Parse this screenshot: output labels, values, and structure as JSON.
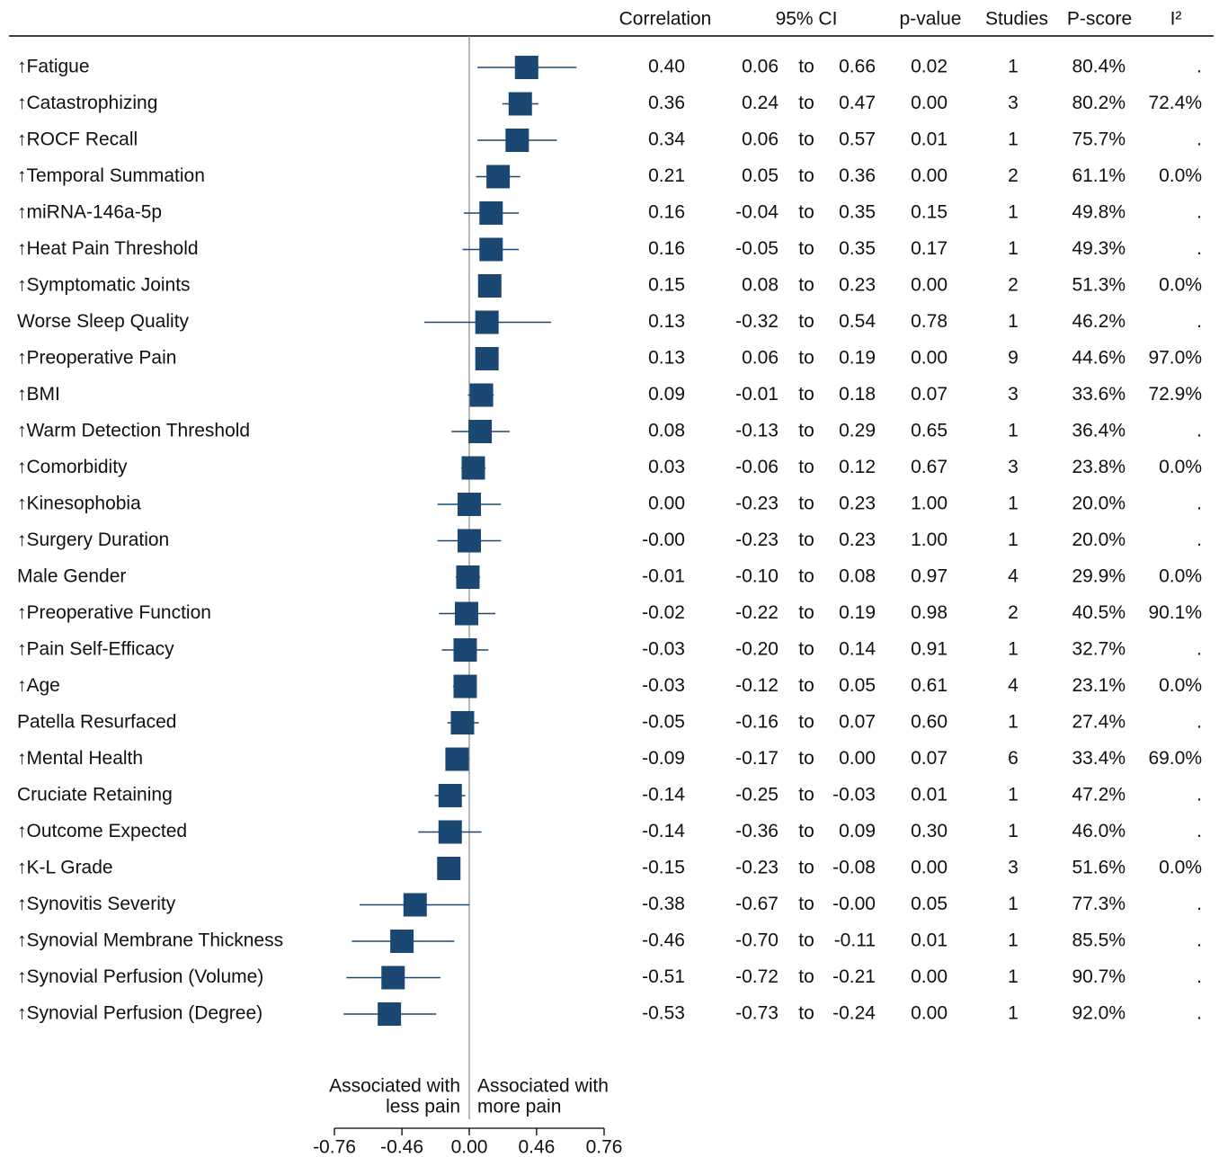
{
  "chart_data": {
    "type": "forest",
    "columns": [
      "Correlation",
      "95% CI",
      "p-value",
      "Studies",
      "P-score",
      "I²"
    ],
    "ci_separator": "to",
    "categories": [
      "↑Fatigue",
      "↑Catastrophizing",
      "↑ROCF Recall",
      "↑Temporal Summation",
      "↑miRNA-146a-5p",
      "↑Heat Pain Threshold",
      "↑Symptomatic Joints",
      "Worse Sleep Quality",
      "↑Preoperative Pain",
      "↑BMI",
      "↑Warm Detection Threshold",
      "↑Comorbidity",
      "↑Kinesophobia",
      "↑Surgery Duration",
      "Male Gender",
      "↑Preoperative Function",
      "↑Pain Self-Efficacy",
      "↑Age",
      "Patella Resurfaced",
      "↑Mental Health",
      "Cruciate Retaining",
      "↑Outcome Expected",
      "↑K-L Grade",
      "↑Synovitis Severity",
      "↑Synovial Membrane Thickness",
      "↑Synovial Perfusion (Volume)",
      "↑Synovial Perfusion (Degree)"
    ],
    "values": [
      0.4,
      0.36,
      0.34,
      0.21,
      0.16,
      0.16,
      0.15,
      0.13,
      0.13,
      0.09,
      0.08,
      0.03,
      0.0,
      0,
      -0.01,
      -0.02,
      -0.03,
      -0.03,
      -0.05,
      -0.09,
      -0.14,
      -0.14,
      -0.15,
      -0.38,
      -0.46,
      -0.51,
      -0.53
    ],
    "value_labels": [
      "0.40",
      "0.36",
      "0.34",
      "0.21",
      "0.16",
      "0.16",
      "0.15",
      "0.13",
      "0.13",
      "0.09",
      "0.08",
      "0.03",
      "0.00",
      "-0.00",
      "-0.01",
      "-0.02",
      "-0.03",
      "-0.03",
      "-0.05",
      "-0.09",
      "-0.14",
      "-0.14",
      "-0.15",
      "-0.38",
      "-0.46",
      "-0.51",
      "-0.53"
    ],
    "ci_low": [
      0.06,
      0.24,
      0.06,
      0.05,
      -0.04,
      -0.05,
      0.08,
      -0.32,
      0.06,
      -0.01,
      -0.13,
      -0.06,
      -0.23,
      -0.23,
      -0.1,
      -0.22,
      -0.2,
      -0.12,
      -0.16,
      -0.17,
      -0.25,
      -0.36,
      -0.23,
      -0.67,
      -0.7,
      -0.72,
      -0.73
    ],
    "ci_low_labels": [
      "0.06",
      "0.24",
      "0.06",
      "0.05",
      "-0.04",
      "-0.05",
      "0.08",
      "-0.32",
      "0.06",
      "-0.01",
      "-0.13",
      "-0.06",
      "-0.23",
      "-0.23",
      "-0.10",
      "-0.22",
      "-0.20",
      "-0.12",
      "-0.16",
      "-0.17",
      "-0.25",
      "-0.36",
      "-0.23",
      "-0.67",
      "-0.70",
      "-0.72",
      "-0.73"
    ],
    "ci_high": [
      0.66,
      0.47,
      0.57,
      0.36,
      0.35,
      0.35,
      0.23,
      0.54,
      0.19,
      0.18,
      0.29,
      0.12,
      0.23,
      0.23,
      0.08,
      0.19,
      0.14,
      0.05,
      0.07,
      0.0,
      -0.03,
      0.09,
      -0.08,
      0,
      -0.11,
      -0.21,
      -0.24
    ],
    "ci_high_labels": [
      "0.66",
      "0.47",
      "0.57",
      "0.36",
      "0.35",
      "0.35",
      "0.23",
      "0.54",
      "0.19",
      "0.18",
      "0.29",
      "0.12",
      "0.23",
      "0.23",
      "0.08",
      "0.19",
      "0.14",
      "0.05",
      "0.07",
      "0.00",
      "-0.03",
      "0.09",
      "-0.08",
      "-0.00",
      "-0.11",
      "-0.21",
      "-0.24"
    ],
    "p_values": [
      "0.02",
      "0.00",
      "0.01",
      "0.00",
      "0.15",
      "0.17",
      "0.00",
      "0.78",
      "0.00",
      "0.07",
      "0.65",
      "0.67",
      "1.00",
      "1.00",
      "0.97",
      "0.98",
      "0.91",
      "0.61",
      "0.60",
      "0.07",
      "0.01",
      "0.30",
      "0.00",
      "0.05",
      "0.01",
      "0.00",
      "0.00"
    ],
    "studies": [
      1,
      3,
      1,
      2,
      1,
      1,
      2,
      1,
      9,
      3,
      1,
      3,
      1,
      1,
      4,
      2,
      1,
      4,
      1,
      6,
      1,
      1,
      3,
      1,
      1,
      1,
      1
    ],
    "p_scores": [
      "80.4%",
      "80.2%",
      "75.7%",
      "61.1%",
      "49.8%",
      "49.3%",
      "51.3%",
      "46.2%",
      "44.6%",
      "33.6%",
      "36.4%",
      "23.8%",
      "20.0%",
      "20.0%",
      "29.9%",
      "40.5%",
      "32.7%",
      "23.1%",
      "27.4%",
      "33.4%",
      "47.2%",
      "46.0%",
      "51.6%",
      "77.3%",
      "85.5%",
      "90.7%",
      "92.0%"
    ],
    "i2": [
      ".",
      "72.4%",
      ".",
      "0.0%",
      ".",
      ".",
      "0.0%",
      ".",
      "97.0%",
      "72.9%",
      ".",
      "0.0%",
      ".",
      ".",
      "0.0%",
      "90.1%",
      ".",
      "0.0%",
      ".",
      "69.0%",
      ".",
      ".",
      "0.0%",
      ".",
      ".",
      ".",
      "."
    ],
    "annotations": [
      [
        "Associated with",
        "less pain"
      ],
      [
        "Associated with",
        "more pain"
      ]
    ],
    "xlim": [
      -0.76,
      0.76
    ],
    "xticks": [
      -0.76,
      -0.46,
      {
        "value": 0,
        "label": "0.00"
      },
      0.46,
      0.76
    ],
    "x_scale": "fisher_z",
    "color": "#1b4872"
  }
}
